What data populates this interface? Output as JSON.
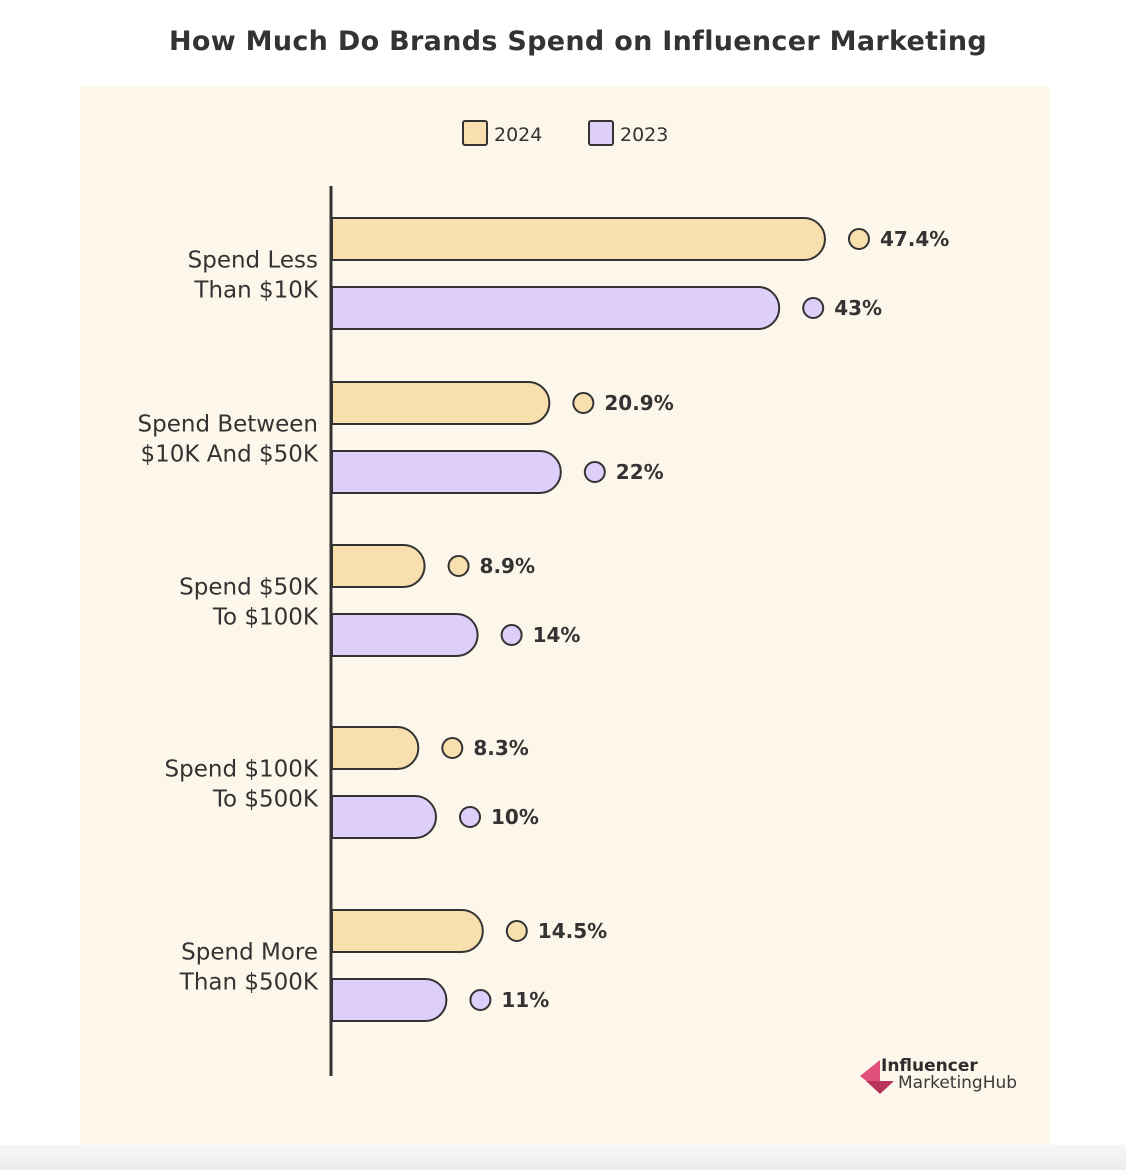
{
  "chart_data": {
    "type": "bar",
    "orientation": "horizontal",
    "title": "How Much Do Brands Spend on Influencer Marketing",
    "categories": [
      [
        "Spend Less",
        "Than $10K"
      ],
      [
        "Spend Between",
        "$10K And $50K"
      ],
      [
        "Spend $50K",
        "To $100K"
      ],
      [
        "Spend $100K",
        "To $500K"
      ],
      [
        "Spend More",
        "Than $500K"
      ]
    ],
    "series": [
      {
        "name": "2024",
        "values": [
          47.4,
          20.9,
          8.9,
          8.3,
          14.5
        ],
        "labels": [
          "47.4%",
          "20.9%",
          "8.9%",
          "8.3%",
          "14.5%"
        ],
        "color": "#f8dfae"
      },
      {
        "name": "2023",
        "values": [
          43,
          22,
          14,
          10,
          11
        ],
        "labels": [
          "43%",
          "22%",
          "14%",
          "10%",
          "11%"
        ],
        "color": "#ddcefa"
      }
    ],
    "xlabel": "",
    "ylabel": "",
    "grid": false,
    "legend": "top-center",
    "background": "#fdf6ea",
    "outline": "#333333"
  },
  "logo": {
    "line1": "Influencer",
    "line2": "MarketingHub",
    "color": "#d9456f"
  }
}
